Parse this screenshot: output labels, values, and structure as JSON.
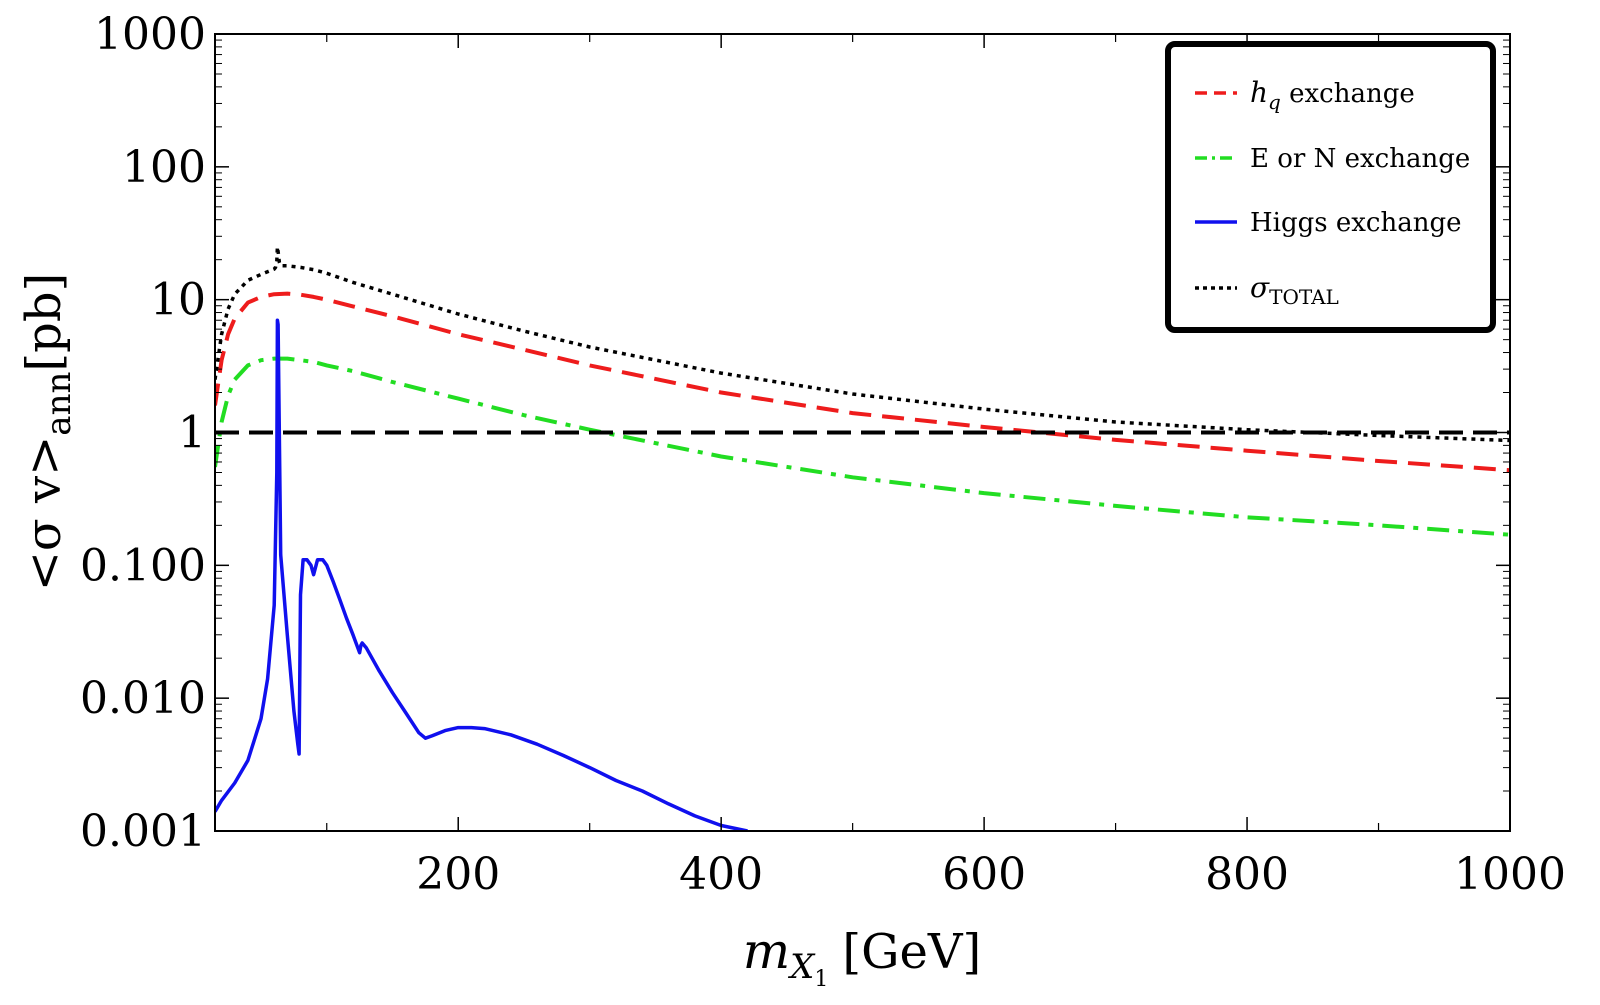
{
  "chart_data": {
    "type": "line",
    "title": "",
    "xlabel": {
      "main": "m",
      "sub": "X",
      "subsub": "1",
      "unit": "[GeV]"
    },
    "ylabel": {
      "pre": "<σ v>",
      "sub": "ann",
      "post": "[pb]"
    },
    "xlim": [
      15,
      1000
    ],
    "ylim": [
      0.001,
      1000
    ],
    "yscale": "log",
    "x_ticks": [
      200,
      400,
      600,
      800,
      1000
    ],
    "x_tick_labels": [
      "200",
      "400",
      "600",
      "800",
      "1000"
    ],
    "y_ticks": [
      0.001,
      0.01,
      0.1,
      1,
      10,
      100,
      1000
    ],
    "y_tick_labels": [
      "0.001",
      "0.010",
      "0.100",
      "1",
      "10",
      "100",
      "1000"
    ],
    "legend_position": "top-right",
    "series": [
      {
        "name": "h_q exchange",
        "legend_main": "h",
        "legend_sub": "q",
        "legend_rest": " exchange",
        "color": "#ee1c1c",
        "style": "dashed",
        "x": [
          15,
          20,
          25,
          30,
          40,
          50,
          60,
          70,
          80,
          90,
          100,
          120,
          150,
          200,
          250,
          300,
          400,
          500,
          600,
          700,
          800,
          900,
          1000
        ],
        "y": [
          1.6,
          3.5,
          5.5,
          7.2,
          9.5,
          10.5,
          11.0,
          11.1,
          10.9,
          10.5,
          10.0,
          8.9,
          7.5,
          5.5,
          4.2,
          3.2,
          2.0,
          1.4,
          1.1,
          0.88,
          0.73,
          0.61,
          0.52
        ]
      },
      {
        "name": "E or N exchange",
        "legend_main": "E or N exchange",
        "legend_sub": "",
        "legend_rest": "",
        "color": "#22dd22",
        "style": "dashdot",
        "x": [
          15,
          20,
          25,
          30,
          40,
          50,
          60,
          70,
          80,
          90,
          100,
          120,
          150,
          200,
          250,
          300,
          400,
          500,
          600,
          700,
          800,
          900,
          1000
        ],
        "y": [
          0.55,
          1.2,
          1.9,
          2.5,
          3.2,
          3.5,
          3.6,
          3.6,
          3.5,
          3.4,
          3.2,
          2.9,
          2.4,
          1.8,
          1.35,
          1.05,
          0.66,
          0.46,
          0.35,
          0.28,
          0.23,
          0.2,
          0.17
        ]
      },
      {
        "name": "Higgs exchange",
        "legend_main": "Higgs exchange",
        "legend_sub": "",
        "legend_rest": "",
        "color": "#1010ee",
        "style": "solid",
        "x": [
          15,
          20,
          30,
          40,
          50,
          55,
          60,
          62,
          62.5,
          63,
          65,
          70,
          75,
          78,
          79,
          80,
          82,
          85,
          88,
          90,
          93,
          97,
          100,
          105,
          110,
          115,
          120,
          125,
          126,
          127,
          130,
          140,
          150,
          160,
          170,
          175,
          180,
          190,
          200,
          210,
          220,
          240,
          260,
          280,
          300,
          320,
          340,
          360,
          380,
          400,
          420
        ],
        "y": [
          0.0014,
          0.0017,
          0.0023,
          0.0034,
          0.007,
          0.014,
          0.05,
          0.5,
          7.0,
          6.5,
          0.12,
          0.03,
          0.008,
          0.0045,
          0.0038,
          0.06,
          0.11,
          0.11,
          0.1,
          0.085,
          0.11,
          0.11,
          0.1,
          0.075,
          0.055,
          0.04,
          0.03,
          0.022,
          0.025,
          0.026,
          0.024,
          0.016,
          0.011,
          0.0078,
          0.0055,
          0.005,
          0.0052,
          0.0057,
          0.006,
          0.006,
          0.0059,
          0.0053,
          0.0045,
          0.0037,
          0.003,
          0.0024,
          0.002,
          0.0016,
          0.0013,
          0.0011,
          0.001
        ]
      },
      {
        "name": "σTOTAL",
        "legend_main": "σ",
        "legend_sub": "TOTAL",
        "legend_rest": "",
        "color": "#000000",
        "style": "dotted",
        "x": [
          15,
          20,
          25,
          30,
          40,
          50,
          60,
          61,
          62,
          62.5,
          63,
          64,
          65,
          70,
          80,
          90,
          100,
          120,
          150,
          200,
          250,
          300,
          400,
          500,
          600,
          700,
          800,
          900,
          1000
        ],
        "y": [
          2.5,
          5.5,
          8.5,
          11.0,
          14.0,
          15.5,
          17.0,
          17.5,
          19.5,
          25.0,
          23.0,
          19.0,
          18.0,
          18.0,
          17.5,
          16.8,
          15.8,
          13.5,
          11.0,
          7.8,
          5.8,
          4.4,
          2.8,
          1.95,
          1.5,
          1.2,
          1.05,
          0.95,
          0.87
        ]
      },
      {
        "name": "reference",
        "legend_main": "",
        "legend_sub": "",
        "legend_rest": "",
        "color": "#000000",
        "style": "longdash",
        "x": [
          15,
          1000
        ],
        "y": [
          1,
          1
        ]
      }
    ]
  }
}
